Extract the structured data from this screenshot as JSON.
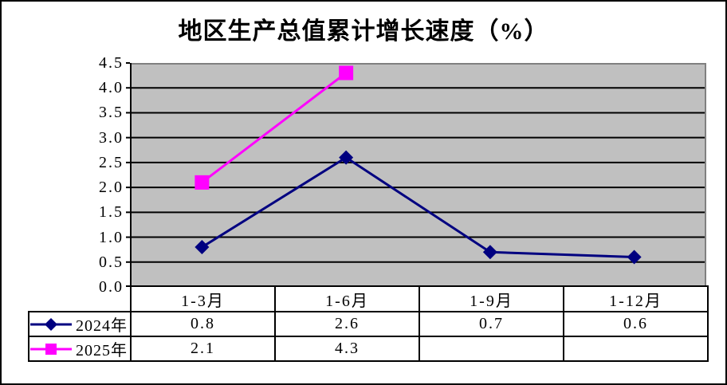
{
  "chart": {
    "title": "地区生产总值累计增长速度（%）"
  },
  "chart_data": {
    "type": "line",
    "title": "地区生产总值累计增长速度（%）",
    "categories": [
      "1-3月",
      "1-6月",
      "1-9月",
      "1-12月"
    ],
    "series": [
      {
        "name": "2024年",
        "color": "#000080",
        "marker": "diamond",
        "values": [
          0.8,
          2.6,
          0.7,
          0.6
        ]
      },
      {
        "name": "2025年",
        "color": "#FF00FF",
        "marker": "square",
        "values": [
          2.1,
          4.3,
          null,
          null
        ]
      }
    ],
    "ylim": [
      0,
      4.5
    ],
    "ytick_step": 0.5,
    "ytick_labels": [
      "0.0",
      "0.5",
      "1.0",
      "1.5",
      "2.0",
      "2.5",
      "3.0",
      "3.5",
      "4.0",
      "4.5"
    ],
    "grid": true,
    "gridline_color": "#000000",
    "plot_bg_color": "#C0C0C0",
    "plot_border_color": "#808080",
    "axis_color": "#000000",
    "legend_position": "data-table-left"
  },
  "table": {
    "columns": [
      "1-3月",
      "1-6月",
      "1-9月",
      "1-12月"
    ],
    "rows": [
      {
        "label": "2024年",
        "marker_icon": "diamond-line-icon",
        "color": "#000080",
        "values": [
          "0.8",
          "2.6",
          "0.7",
          "0.6"
        ]
      },
      {
        "label": "2025年",
        "marker_icon": "square-line-icon",
        "color": "#FF00FF",
        "values": [
          "2.1",
          "4.3",
          "",
          ""
        ]
      }
    ]
  }
}
